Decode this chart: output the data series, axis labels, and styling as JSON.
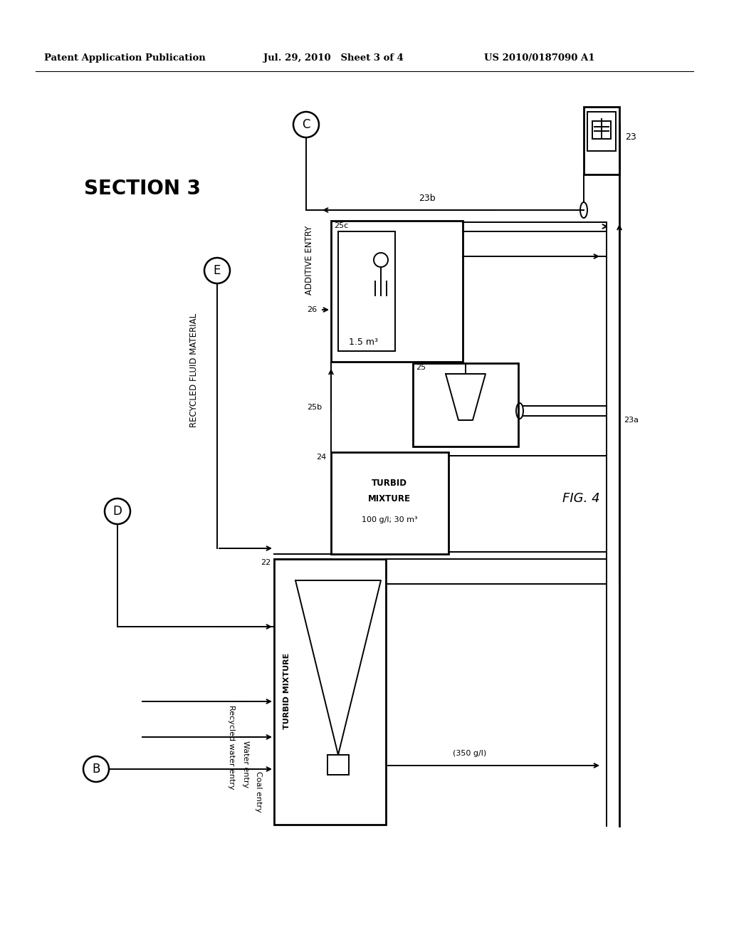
{
  "background": "#ffffff",
  "header_left": "Patent Application Publication",
  "header_mid": "Jul. 29, 2010   Sheet 3 of 4",
  "header_right": "US 2010/0187090 A1",
  "section_label": "SECTION 3",
  "fig_label": "FIG. 4"
}
